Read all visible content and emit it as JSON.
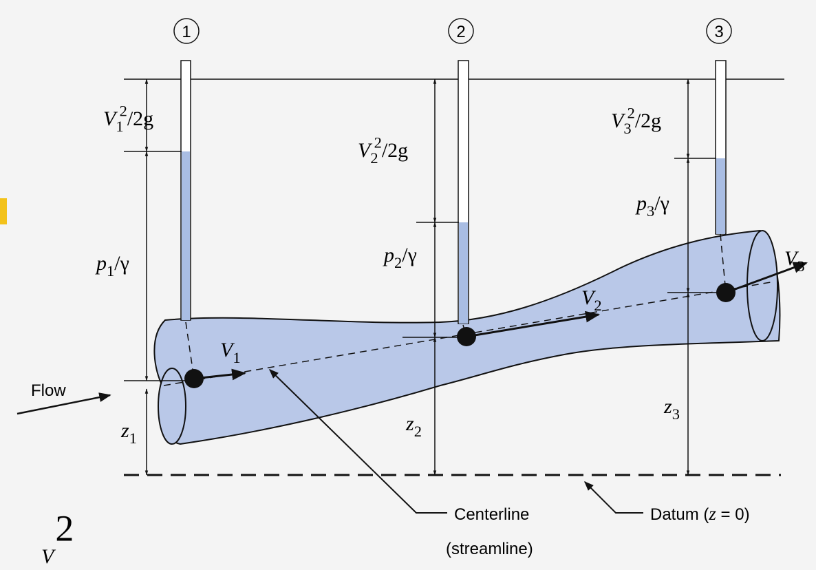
{
  "stations": [
    {
      "number": "1",
      "velocity_head": {
        "symbol": "V",
        "subscript": "1",
        "superscript": "2",
        "rest": "/2g"
      },
      "pressure_head": {
        "symbol": "p",
        "subscript": "1",
        "rest": "/γ"
      },
      "elevation": {
        "symbol": "z",
        "subscript": "1"
      },
      "velocity": {
        "symbol": "V",
        "subscript": "1"
      }
    },
    {
      "number": "2",
      "velocity_head": {
        "symbol": "V",
        "subscript": "2",
        "superscript": "2",
        "rest": "/2g"
      },
      "pressure_head": {
        "symbol": "p",
        "subscript": "2",
        "rest": "/γ"
      },
      "elevation": {
        "symbol": "z",
        "subscript": "2"
      },
      "velocity": {
        "symbol": "V",
        "subscript": "2"
      }
    },
    {
      "number": "3",
      "velocity_head": {
        "symbol": "V",
        "subscript": "3",
        "superscript": "2",
        "rest": "/2g"
      },
      "pressure_head": {
        "symbol": "p",
        "subscript": "3",
        "rest": "/γ"
      },
      "elevation": {
        "symbol": "z",
        "subscript": "3"
      },
      "velocity": {
        "symbol": "V",
        "subscript": "3"
      }
    }
  ],
  "flow_label": "Flow",
  "centerline_label": [
    "Centerline",
    "(streamline)"
  ],
  "datum_label": {
    "text": "Datum (",
    "variable": "z",
    "rest": " = 0)"
  },
  "footer_fragment": {
    "symbol": "V",
    "superscript": "2"
  }
}
